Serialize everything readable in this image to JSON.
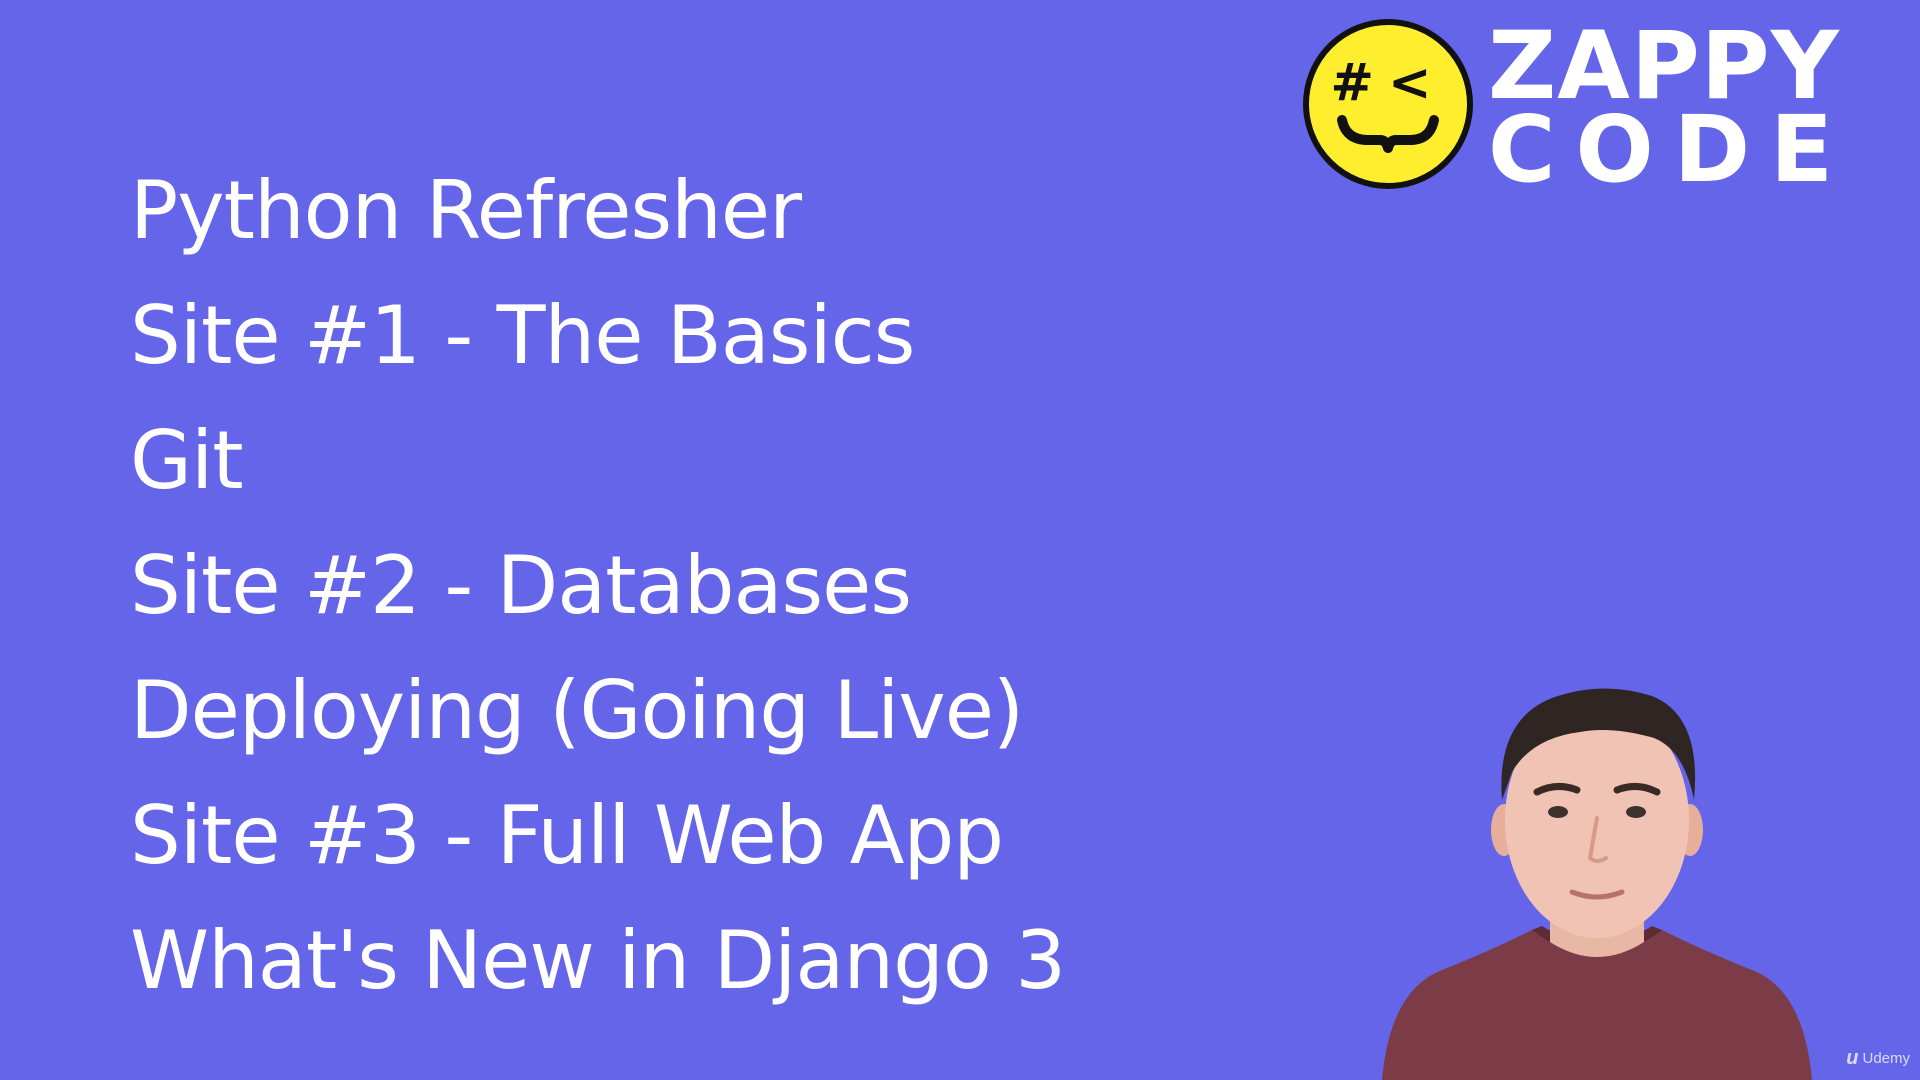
{
  "slide": {
    "background_color": "#6565EA",
    "topics": [
      "Python Refresher",
      "Site #1  - The Basics",
      "Git",
      "Site #2 - Databases",
      "Deploying (Going Live)",
      "Site #3 - Full Web App",
      "What's New in Django 3"
    ]
  },
  "logo": {
    "line1": "ZAPPY",
    "line2": "CODE",
    "mark_glyphs": "#<",
    "mark_color": "#FFEE2E",
    "icon": "winking-brackets-face-icon"
  },
  "presenter": {
    "icon": "presenter-webcam-figure"
  },
  "watermark": {
    "mark": "u",
    "label": "Udemy"
  }
}
